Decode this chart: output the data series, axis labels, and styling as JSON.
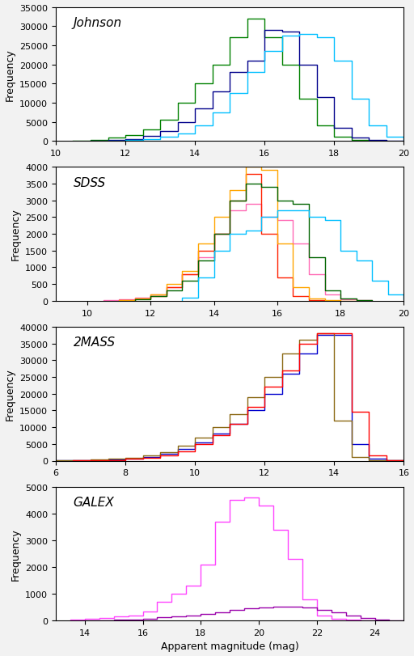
{
  "panels": [
    {
      "label": "Johnson",
      "xlim": [
        10,
        20
      ],
      "ylim": [
        0,
        35000
      ],
      "yticks": [
        0,
        5000,
        10000,
        15000,
        20000,
        25000,
        30000,
        35000
      ],
      "bin_width": 0.5,
      "series": [
        {
          "color": "#008000",
          "bins_start": 10.5,
          "values": [
            100,
            300,
            800,
            1500,
            3000,
            5500,
            10000,
            15000,
            20000,
            27000,
            32000,
            27000,
            20000,
            11000,
            4000,
            1000,
            200,
            50
          ]
        },
        {
          "color": "#00008B",
          "bins_start": 11.0,
          "values": [
            100,
            200,
            500,
            1200,
            2500,
            5000,
            8500,
            13000,
            18000,
            21000,
            29000,
            28500,
            20000,
            11500,
            3500,
            800,
            150,
            30
          ]
        },
        {
          "color": "#00BFFF",
          "bins_start": 11.5,
          "values": [
            100,
            200,
            500,
            1000,
            2000,
            4000,
            7500,
            12500,
            18000,
            23500,
            27500,
            28000,
            27000,
            21000,
            11000,
            4000,
            1000,
            200
          ]
        }
      ]
    },
    {
      "label": "SDSS",
      "xlim": [
        9,
        20
      ],
      "ylim": [
        0,
        4000
      ],
      "yticks": [
        0,
        500,
        1000,
        1500,
        2000,
        2500,
        3000,
        3500,
        4000
      ],
      "bin_width": 0.5,
      "series": [
        {
          "color": "#FF69B4",
          "bins_start": 10.5,
          "values": [
            20,
            50,
            100,
            200,
            400,
            800,
            1300,
            2000,
            2700,
            2900,
            2500,
            2400,
            1700,
            800,
            200,
            50,
            10
          ]
        },
        {
          "color": "#FF2000",
          "bins_start": 11.0,
          "values": [
            30,
            60,
            150,
            400,
            800,
            1500,
            2000,
            3000,
            3800,
            2000,
            700,
            150,
            30,
            5
          ]
        },
        {
          "color": "#FFA500",
          "bins_start": 11.0,
          "values": [
            30,
            70,
            200,
            500,
            900,
            1700,
            2500,
            3300,
            4000,
            3900,
            1700,
            400,
            80,
            15,
            5
          ]
        },
        {
          "color": "#006400",
          "bins_start": 11.5,
          "values": [
            50,
            150,
            300,
            600,
            1200,
            2000,
            3000,
            3500,
            3400,
            3000,
            2900,
            1300,
            300,
            60,
            10
          ]
        },
        {
          "color": "#00BFFF",
          "bins_start": 13.0,
          "values": [
            100,
            700,
            1500,
            2000,
            2100,
            2500,
            2700,
            2700,
            2500,
            2400,
            1500,
            1200,
            600,
            200,
            50
          ]
        }
      ]
    },
    {
      "label": "2MASS",
      "xlim": [
        6,
        16
      ],
      "ylim": [
        0,
        40000
      ],
      "yticks": [
        0,
        5000,
        10000,
        15000,
        20000,
        25000,
        30000,
        35000,
        40000
      ],
      "bin_width": 0.5,
      "series": [
        {
          "color": "#0000CD",
          "bins_start": 6.0,
          "values": [
            50,
            100,
            200,
            400,
            700,
            1200,
            2000,
            3500,
            5500,
            8000,
            11000,
            15000,
            20000,
            26000,
            32000,
            37500,
            37500,
            5000,
            500,
            100
          ]
        },
        {
          "color": "#8B6914",
          "bins_start": 6.0,
          "values": [
            60,
            120,
            250,
            500,
            900,
            1500,
            2500,
            4500,
            7000,
            10000,
            14000,
            19000,
            25000,
            32000,
            36000,
            38000,
            12000,
            1200,
            200,
            50
          ]
        },
        {
          "color": "#FF0000",
          "bins_start": 6.5,
          "values": [
            30,
            80,
            200,
            500,
            900,
            1600,
            2800,
            5000,
            7500,
            11000,
            16000,
            22000,
            27000,
            35000,
            38000,
            38000,
            14500,
            1500,
            200
          ]
        }
      ]
    },
    {
      "label": "GALEX",
      "xlim": [
        13,
        25
      ],
      "ylim": [
        0,
        5000
      ],
      "yticks": [
        0,
        1000,
        2000,
        3000,
        4000,
        5000
      ],
      "bin_width": 0.5,
      "series": [
        {
          "color": "#FF44FF",
          "bins_start": 13.5,
          "values": [
            50,
            80,
            100,
            150,
            200,
            350,
            700,
            1000,
            1300,
            2100,
            3700,
            4500,
            4600,
            4300,
            3400,
            2300,
            800,
            200,
            80,
            30,
            10
          ]
        },
        {
          "color": "#9900AA",
          "bins_start": 14.0,
          "values": [
            10,
            20,
            30,
            50,
            80,
            120,
            160,
            200,
            250,
            320,
            400,
            450,
            500,
            520,
            510,
            480,
            400,
            300,
            200,
            100,
            50,
            20
          ]
        }
      ]
    }
  ],
  "xlabel": "Apparent magnitude (mag)",
  "ylabel": "Frequency",
  "figure_facecolor": "#f2f2f2"
}
